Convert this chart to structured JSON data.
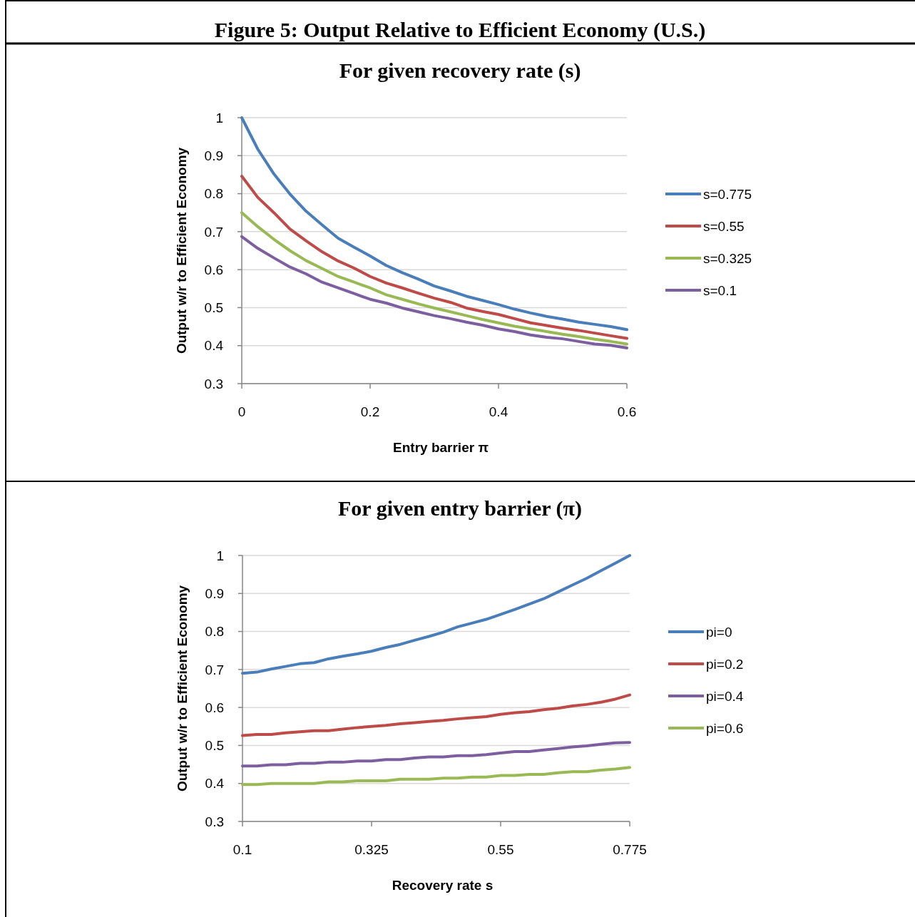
{
  "chart_data": [
    {
      "type": "line",
      "title": "Figure 5: Output Relative to Efficient Economy (U.S.)",
      "subtitle": "For given recovery rate (s)",
      "xlabel": "Entry barrier π",
      "ylabel": "Output w/r to Efficient Economy",
      "x": [
        0,
        0.025,
        0.05,
        0.075,
        0.1,
        0.125,
        0.15,
        0.175,
        0.2,
        0.225,
        0.25,
        0.275,
        0.3,
        0.325,
        0.35,
        0.375,
        0.4,
        0.425,
        0.45,
        0.475,
        0.5,
        0.525,
        0.55,
        0.575,
        0.6
      ],
      "xlim": [
        0,
        0.6
      ],
      "xticks": [
        0,
        0.2,
        0.4,
        0.6
      ],
      "ylim": [
        0.3,
        1
      ],
      "yticks": [
        0.3,
        0.4,
        0.5,
        0.6,
        0.7,
        0.8,
        0.9,
        1
      ],
      "grid": "y",
      "legend": "right",
      "marker": "none",
      "line_style": "solid",
      "series": [
        {
          "name": "s=0.775",
          "color": "#4a7ebb",
          "values": [
            1.0,
            0.917,
            0.852,
            0.799,
            0.754,
            0.718,
            0.683,
            0.659,
            0.636,
            0.611,
            0.592,
            0.575,
            0.557,
            0.544,
            0.53,
            0.519,
            0.508,
            0.496,
            0.486,
            0.477,
            0.47,
            0.462,
            0.456,
            0.45,
            0.442
          ]
        },
        {
          "name": "s=0.55",
          "color": "#be4b48",
          "values": [
            0.846,
            0.79,
            0.75,
            0.707,
            0.676,
            0.647,
            0.623,
            0.604,
            0.582,
            0.565,
            0.552,
            0.538,
            0.525,
            0.514,
            0.499,
            0.49,
            0.482,
            0.471,
            0.46,
            0.453,
            0.446,
            0.44,
            0.433,
            0.426,
            0.419
          ]
        },
        {
          "name": "s=0.325",
          "color": "#98b954",
          "values": [
            0.75,
            0.713,
            0.68,
            0.65,
            0.624,
            0.603,
            0.582,
            0.567,
            0.552,
            0.534,
            0.522,
            0.51,
            0.499,
            0.489,
            0.479,
            0.469,
            0.46,
            0.451,
            0.444,
            0.437,
            0.43,
            0.424,
            0.417,
            0.411,
            0.404
          ]
        },
        {
          "name": "s=0.1",
          "color": "#7d5fa0",
          "values": [
            0.687,
            0.656,
            0.631,
            0.607,
            0.589,
            0.567,
            0.552,
            0.537,
            0.522,
            0.512,
            0.499,
            0.489,
            0.479,
            0.471,
            0.462,
            0.454,
            0.444,
            0.437,
            0.428,
            0.422,
            0.418,
            0.411,
            0.404,
            0.401,
            0.394
          ]
        }
      ]
    },
    {
      "type": "line",
      "title": "For given entry barrier (π)",
      "xlabel": "Recovery rate s",
      "ylabel": "Output w/r to Efficient Economy",
      "x": [
        0.1,
        0.125,
        0.15,
        0.175,
        0.2,
        0.225,
        0.25,
        0.275,
        0.3,
        0.325,
        0.35,
        0.375,
        0.4,
        0.425,
        0.45,
        0.475,
        0.5,
        0.525,
        0.55,
        0.575,
        0.6,
        0.625,
        0.65,
        0.675,
        0.7,
        0.725,
        0.75,
        0.775
      ],
      "xlim": [
        0.1,
        0.775
      ],
      "xticks": [
        0.1,
        0.325,
        0.55,
        0.775
      ],
      "ylim": [
        0.3,
        1
      ],
      "yticks": [
        0.3,
        0.4,
        0.5,
        0.6,
        0.7,
        0.8,
        0.9,
        1
      ],
      "grid": "y",
      "legend": "right",
      "marker": "none",
      "line_style": "solid",
      "series": [
        {
          "name": "pi=0",
          "color": "#4a7ebb",
          "values": [
            0.69,
            0.693,
            0.701,
            0.708,
            0.715,
            0.718,
            0.728,
            0.735,
            0.741,
            0.748,
            0.758,
            0.766,
            0.777,
            0.787,
            0.798,
            0.812,
            0.822,
            0.832,
            0.845,
            0.858,
            0.872,
            0.886,
            0.904,
            0.922,
            0.94,
            0.96,
            0.98,
            1.0
          ]
        },
        {
          "name": "pi=0.2",
          "color": "#be4b48",
          "values": [
            0.526,
            0.529,
            0.529,
            0.533,
            0.536,
            0.539,
            0.539,
            0.543,
            0.547,
            0.55,
            0.553,
            0.557,
            0.56,
            0.563,
            0.566,
            0.57,
            0.573,
            0.576,
            0.582,
            0.586,
            0.589,
            0.594,
            0.598,
            0.604,
            0.608,
            0.614,
            0.622,
            0.633
          ]
        },
        {
          "name": "pi=0.4",
          "color": "#7d5fa0",
          "values": [
            0.446,
            0.446,
            0.449,
            0.449,
            0.453,
            0.453,
            0.456,
            0.456,
            0.459,
            0.459,
            0.463,
            0.463,
            0.467,
            0.47,
            0.47,
            0.473,
            0.473,
            0.476,
            0.48,
            0.484,
            0.484,
            0.488,
            0.492,
            0.496,
            0.499,
            0.503,
            0.507,
            0.508
          ]
        },
        {
          "name": "pi=0.6",
          "color": "#98b954",
          "values": [
            0.397,
            0.397,
            0.4,
            0.4,
            0.4,
            0.4,
            0.404,
            0.404,
            0.407,
            0.407,
            0.407,
            0.411,
            0.411,
            0.411,
            0.414,
            0.414,
            0.417,
            0.417,
            0.421,
            0.421,
            0.424,
            0.424,
            0.428,
            0.431,
            0.431,
            0.435,
            0.438,
            0.442
          ]
        }
      ]
    }
  ]
}
